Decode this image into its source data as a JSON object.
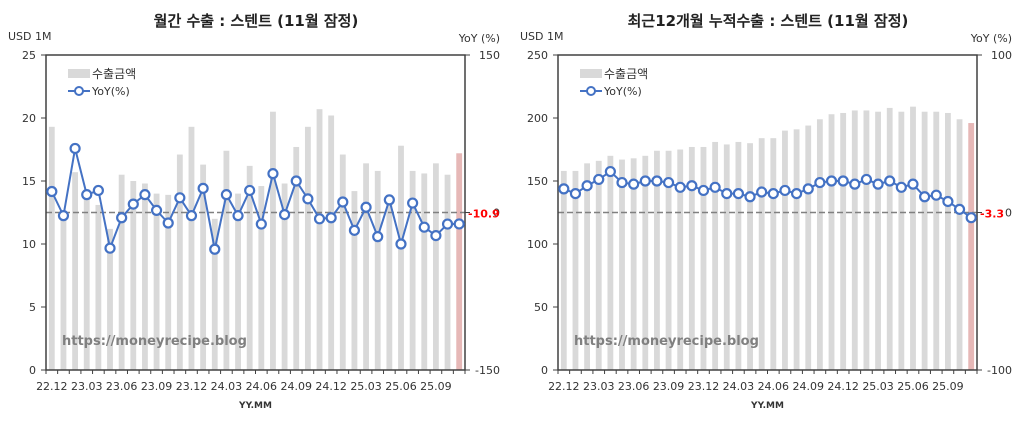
{
  "chart_data": [
    {
      "type": "bar+line",
      "title": "월간 수출 : 스텐트 (11월 잠정)",
      "xlabel": "YY.MM",
      "ylabel_left": "USD 1M",
      "ylabel_right": "YoY (%)",
      "ylim_left": [
        0,
        25
      ],
      "ylim_right": [
        -150,
        150
      ],
      "yticks_left": [
        "0",
        "5",
        "10",
        "15",
        "20",
        "25"
      ],
      "yticks_right": [
        "-150",
        "0",
        "150"
      ],
      "xtick_labels": [
        "22.12",
        "23.03",
        "23.06",
        "23.09",
        "23.12",
        "24.03",
        "24.06",
        "24.09",
        "24.12",
        "25.03",
        "25.06",
        "25.09"
      ],
      "legend": [
        "수출금액",
        "YoY(%)"
      ],
      "watermark": "https://moneyrecipe.blog",
      "last_label": "-10.9",
      "categories": [
        "22.12",
        "23.01",
        "23.02",
        "23.03",
        "23.04",
        "23.05",
        "23.06",
        "23.07",
        "23.08",
        "23.09",
        "23.10",
        "23.11",
        "23.12",
        "24.01",
        "24.02",
        "24.03",
        "24.04",
        "24.05",
        "24.06",
        "24.07",
        "24.08",
        "24.09",
        "24.10",
        "24.11",
        "24.12",
        "25.01",
        "25.02",
        "25.03",
        "25.04",
        "25.05",
        "25.06",
        "25.07",
        "25.08",
        "25.09",
        "25.10",
        "25.11"
      ],
      "series": [
        {
          "name": "수출금액",
          "axis": "left",
          "values": [
            19.3,
            12.6,
            15.7,
            14.0,
            13.1,
            11.2,
            15.5,
            15.0,
            14.8,
            14.0,
            13.9,
            17.1,
            19.3,
            16.3,
            12.0,
            17.4,
            14.0,
            16.2,
            14.6,
            20.5,
            14.8,
            17.7,
            19.3,
            20.7,
            20.2,
            17.1,
            14.2,
            16.4,
            15.8,
            13.6,
            17.8,
            15.8,
            15.6,
            16.4,
            15.5,
            17.2
          ]
        },
        {
          "name": "YoY(%)",
          "axis": "right",
          "values": [
            20,
            -3,
            61,
            17,
            21,
            -34,
            -5,
            8,
            17,
            2,
            -10,
            14,
            -3,
            23,
            -35,
            17,
            -3,
            21,
            -11,
            37,
            -2,
            30,
            13,
            -6,
            -5,
            10,
            -17,
            5,
            -23,
            12,
            -30,
            9,
            -14,
            -22,
            -11,
            -10.9
          ]
        }
      ]
    },
    {
      "type": "bar+line",
      "title": "최근12개월 누적수출 : 스텐트 (11월 잠정)",
      "xlabel": "YY.MM",
      "ylabel_left": "USD 1M",
      "ylabel_right": "YoY (%)",
      "ylim_left": [
        0,
        250
      ],
      "ylim_right": [
        -100,
        100
      ],
      "yticks_left": [
        "0",
        "50",
        "100",
        "150",
        "200",
        "250"
      ],
      "yticks_right": [
        "-100",
        "0",
        "100"
      ],
      "xtick_labels": [
        "22.12",
        "23.03",
        "23.06",
        "23.09",
        "23.12",
        "24.03",
        "24.06",
        "24.09",
        "24.12",
        "25.03",
        "25.06",
        "25.09"
      ],
      "legend": [
        "수출금액",
        "YoY(%)"
      ],
      "watermark": "https://moneyrecipe.blog",
      "last_label": "-3.3",
      "categories": [
        "22.12",
        "23.01",
        "23.02",
        "23.03",
        "23.04",
        "23.05",
        "23.06",
        "23.07",
        "23.08",
        "23.09",
        "23.10",
        "23.11",
        "23.12",
        "24.01",
        "24.02",
        "24.03",
        "24.04",
        "24.05",
        "24.06",
        "24.07",
        "24.08",
        "24.09",
        "24.10",
        "24.11",
        "24.12",
        "25.01",
        "25.02",
        "25.03",
        "25.04",
        "25.05",
        "25.06",
        "25.07",
        "25.08",
        "25.09",
        "25.10",
        "25.11"
      ],
      "series": [
        {
          "name": "수출금액",
          "axis": "left",
          "values": [
            158,
            158,
            164,
            166,
            170,
            167,
            168,
            170,
            174,
            174,
            175,
            177,
            177,
            181,
            179,
            181,
            180,
            184,
            184,
            190,
            191,
            194,
            199,
            203,
            204,
            206,
            206,
            205,
            208,
            205,
            209,
            205,
            205,
            204,
            199,
            196
          ]
        },
        {
          "name": "YoY(%)",
          "axis": "right",
          "values": [
            15,
            12,
            17,
            21,
            26,
            19,
            18,
            20,
            20,
            19,
            16,
            17,
            14,
            16,
            12,
            12,
            10,
            13,
            12,
            14,
            12,
            15,
            19,
            20,
            20,
            18,
            21,
            18,
            20,
            16,
            18,
            10,
            11,
            7,
            2,
            -3.3
          ]
        }
      ]
    }
  ],
  "ui": {
    "left": {
      "title": "월간 수출 : 스텐트 (11월 잠정)",
      "unit_left": "USD 1M",
      "unit_right": "YoY (%)",
      "xlabel": "YY.MM",
      "legend_bar": "수출금액",
      "legend_line": "YoY(%)",
      "watermark": "https://moneyrecipe.blog"
    },
    "right": {
      "title": "최근12개월 누적수출 : 스텐트 (11월 잠정)",
      "unit_left": "USD 1M",
      "unit_right": "YoY (%)",
      "xlabel": "YY.MM",
      "legend_bar": "수출금액",
      "legend_line": "YoY(%)",
      "watermark": "https://moneyrecipe.blog"
    }
  },
  "colors": {
    "bar": "#d9d9d9",
    "bar_last": "#e6b8b7",
    "line": "#4472c4",
    "zero_line": "#808080",
    "last_label": "#ff0000",
    "axis": "#404040",
    "watermark": "#808080"
  }
}
